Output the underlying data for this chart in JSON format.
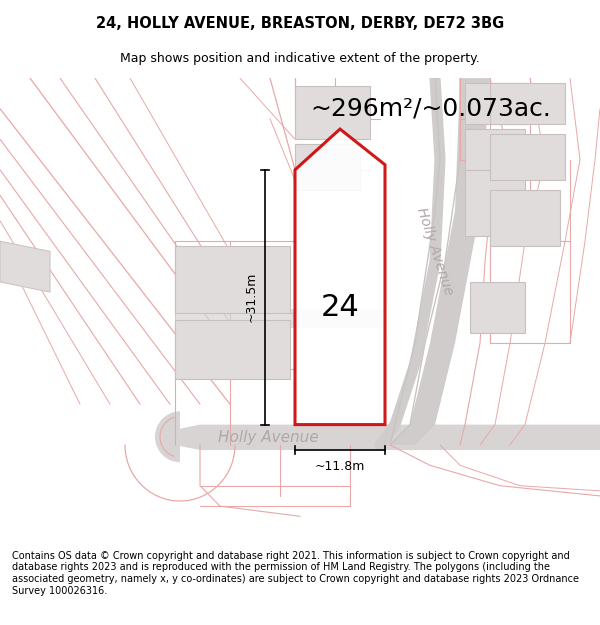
{
  "title": "24, HOLLY AVENUE, BREASTON, DERBY, DE72 3BG",
  "subtitle": "Map shows position and indicative extent of the property.",
  "footer": "Contains OS data © Crown copyright and database right 2021. This information is subject to Crown copyright and database rights 2023 and is reproduced with the permission of HM Land Registry. The polygons (including the associated geometry, namely x, y co-ordinates) are subject to Crown copyright and database rights 2023 Ordnance Survey 100026316.",
  "area_label": "~296m²/~0.073ac.",
  "width_label": "~11.8m",
  "height_label": "~31.5m",
  "number_label": "24",
  "road_label_h": "Holly Avenue",
  "road_label_v": "Holly Avenue",
  "bg_color": "#f9f6f5",
  "line_color": "#e8a8a8",
  "gray_fill": "#e0dcdc",
  "gray_stroke": "#c8c0c0",
  "road_gray": "#c8c4c4",
  "road_label_color": "#b0a8a8",
  "property_red": "#cc0000",
  "title_fontsize": 10.5,
  "subtitle_fontsize": 9,
  "footer_fontsize": 7.0,
  "area_fontsize": 18,
  "number_fontsize": 22,
  "dim_fontsize": 9,
  "road_fontsize": 11
}
